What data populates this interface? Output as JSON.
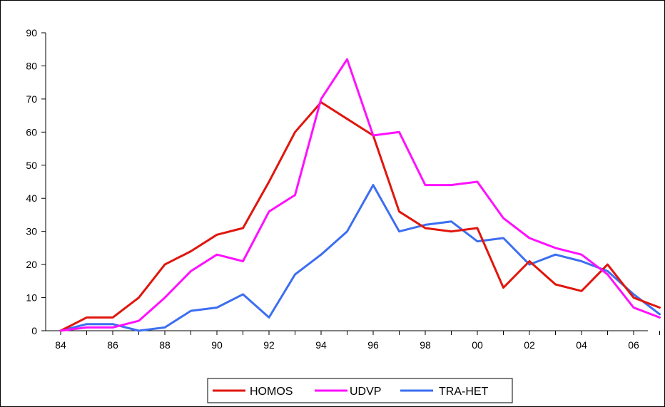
{
  "chart_data": {
    "type": "line",
    "title": "",
    "xlabel": "",
    "ylabel": "",
    "ylim": [
      0,
      90
    ],
    "yticks": [
      0,
      10,
      20,
      30,
      40,
      50,
      60,
      70,
      80,
      90
    ],
    "x": [
      "84",
      "85",
      "86",
      "87",
      "88",
      "89",
      "90",
      "91",
      "92",
      "93",
      "94",
      "95",
      "96",
      "97",
      "98",
      "99",
      "00",
      "01",
      "02",
      "03",
      "04",
      "05",
      "06",
      "07"
    ],
    "xtick_labels": [
      "84",
      "86",
      "88",
      "90",
      "92",
      "94",
      "96",
      "98",
      "00",
      "02",
      "04",
      "06"
    ],
    "grid": false,
    "legend_position": "bottom",
    "series": [
      {
        "name": "HOMOS",
        "color": "#e0160e",
        "values": [
          0,
          4,
          4,
          10,
          20,
          24,
          29,
          31,
          45,
          60,
          69,
          64,
          59,
          36,
          31,
          30,
          31,
          13,
          21,
          14,
          12,
          20,
          10,
          7
        ]
      },
      {
        "name": "UDVP",
        "color": "#ff10ff",
        "values": [
          0,
          1,
          1,
          3,
          10,
          18,
          23,
          21,
          36,
          41,
          70,
          82,
          59,
          60,
          44,
          44,
          45,
          34,
          28,
          25,
          23,
          17,
          7,
          4
        ]
      },
      {
        "name": "TRA-HET",
        "color": "#3c6ef0",
        "values": [
          0,
          2,
          2,
          0,
          1,
          6,
          7,
          11,
          4,
          17,
          23,
          30,
          44,
          30,
          32,
          33,
          27,
          28,
          20,
          23,
          21,
          18,
          11,
          5
        ]
      }
    ]
  }
}
